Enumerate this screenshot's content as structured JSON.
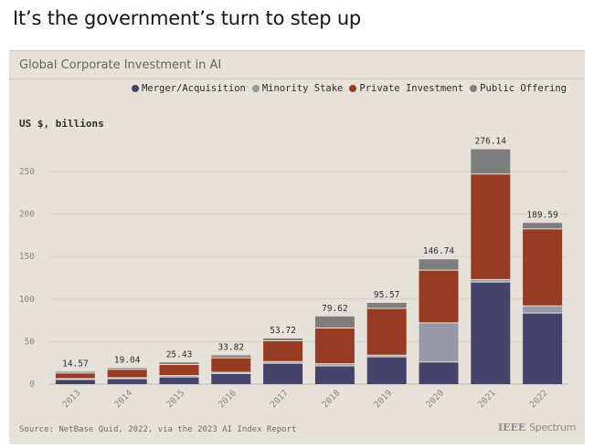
{
  "headline": "It’s the government’s turn to step up",
  "brand_left": "IEEE",
  "brand_right": "Spectrum",
  "source": "Source: NetBase Quid, 2022, via the 2023 AI Index Report",
  "chart_data": {
    "type": "bar",
    "stacked": true,
    "title": "Global Corporate Investment in AI",
    "ylabel": "US $, billions",
    "xlabel": "",
    "ylim": [
      0,
      280
    ],
    "yticks": [
      0,
      50,
      100,
      150,
      200,
      250
    ],
    "grid": true,
    "legend_position": "top-right",
    "categories": [
      "2013",
      "2014",
      "2015",
      "2016",
      "2017",
      "2018",
      "2019",
      "2020",
      "2021",
      "2022"
    ],
    "series": [
      {
        "name": "Merger/Acquisition",
        "color": "#45436a",
        "values": [
          5.5,
          6.5,
          8.5,
          12.5,
          24.5,
          21.5,
          32,
          26,
          120,
          83.5
        ]
      },
      {
        "name": "Minority Stake",
        "color": "#9698a8",
        "values": [
          1,
          1,
          1.5,
          1.5,
          2,
          2.5,
          2,
          46,
          3,
          8.5
        ]
      },
      {
        "name": "Private Investment",
        "color": "#963b24",
        "values": [
          6.5,
          10,
          13,
          17,
          24.5,
          42,
          55,
          62,
          124,
          90.5
        ]
      },
      {
        "name": "Public Offering",
        "color": "#7e7e7e",
        "values": [
          1.57,
          1.54,
          2.43,
          2.82,
          2.72,
          13.62,
          6.57,
          12.74,
          29.14,
          7.09
        ]
      }
    ],
    "totals": [
      "14.57",
      "19.04",
      "25.43",
      "33.82",
      "53.72",
      "79.62",
      "95.57",
      "146.74",
      "276.14",
      "189.59"
    ]
  }
}
